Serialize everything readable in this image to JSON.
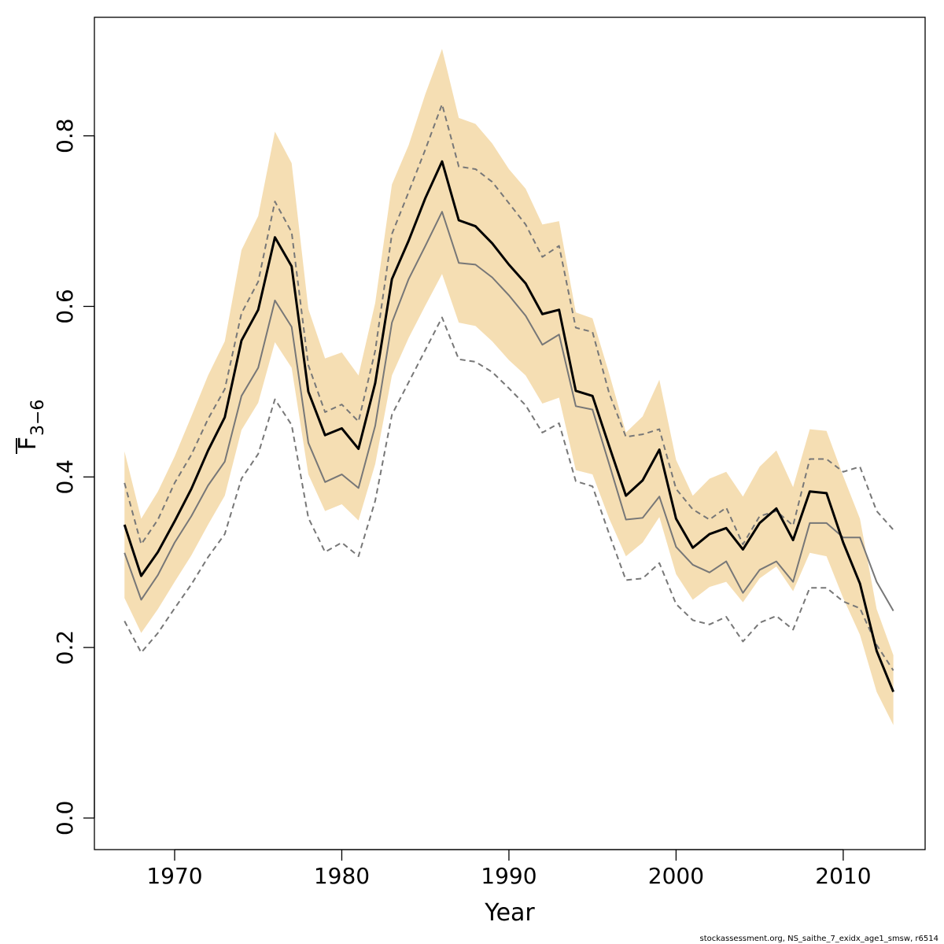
{
  "chart_data": {
    "type": "line",
    "xlabel": "Year",
    "ylabel": "F",
    "ylabel_subscript": "3−6",
    "footer": "stockassessment.org, NS_saithe_7_exidx_age1_smsw, r6514",
    "x": [
      1967,
      1968,
      1969,
      1970,
      1971,
      1972,
      1973,
      1974,
      1975,
      1976,
      1977,
      1978,
      1979,
      1980,
      1981,
      1982,
      1983,
      1984,
      1985,
      1986,
      1987,
      1988,
      1989,
      1990,
      1991,
      1992,
      1993,
      1994,
      1995,
      1996,
      1997,
      1998,
      1999,
      2000,
      2001,
      2002,
      2003,
      2004,
      2005,
      2006,
      2007,
      2008,
      2009,
      2010,
      2011,
      2012,
      2013
    ],
    "band": {
      "color": "#f5deb3",
      "high": [
        0.43,
        0.351,
        0.383,
        0.424,
        0.471,
        0.519,
        0.559,
        0.666,
        0.706,
        0.805,
        0.768,
        0.597,
        0.539,
        0.546,
        0.519,
        0.604,
        0.743,
        0.789,
        0.849,
        0.902,
        0.821,
        0.814,
        0.791,
        0.761,
        0.738,
        0.696,
        0.7,
        0.593,
        0.586,
        0.521,
        0.452,
        0.471,
        0.514,
        0.42,
        0.378,
        0.398,
        0.406,
        0.377,
        0.412,
        0.431,
        0.388,
        0.456,
        0.454,
        0.401,
        0.351,
        0.245,
        0.191
      ],
      "low": [
        0.258,
        0.217,
        0.245,
        0.277,
        0.308,
        0.344,
        0.378,
        0.455,
        0.487,
        0.558,
        0.528,
        0.403,
        0.36,
        0.368,
        0.349,
        0.415,
        0.519,
        0.563,
        0.601,
        0.638,
        0.581,
        0.577,
        0.559,
        0.537,
        0.519,
        0.486,
        0.493,
        0.408,
        0.403,
        0.351,
        0.307,
        0.323,
        0.353,
        0.286,
        0.256,
        0.271,
        0.277,
        0.253,
        0.281,
        0.295,
        0.266,
        0.311,
        0.307,
        0.258,
        0.215,
        0.148,
        0.109
      ]
    },
    "series": [
      {
        "color": "#000000",
        "width": 3,
        "dashed": false,
        "values": [
          0.344,
          0.284,
          0.312,
          0.348,
          0.386,
          0.431,
          0.47,
          0.56,
          0.596,
          0.681,
          0.647,
          0.5,
          0.449,
          0.457,
          0.433,
          0.51,
          0.632,
          0.677,
          0.727,
          0.77,
          0.701,
          0.694,
          0.674,
          0.649,
          0.627,
          0.591,
          0.596,
          0.501,
          0.495,
          0.436,
          0.378,
          0.396,
          0.432,
          0.351,
          0.317,
          0.333,
          0.34,
          0.315,
          0.346,
          0.363,
          0.326,
          0.383,
          0.381,
          0.323,
          0.275,
          0.196,
          0.148
        ]
      },
      {
        "color": "#777777",
        "width": 2,
        "dashed": false,
        "values": [
          0.311,
          0.256,
          0.285,
          0.323,
          0.354,
          0.39,
          0.418,
          0.495,
          0.528,
          0.607,
          0.576,
          0.44,
          0.394,
          0.403,
          0.387,
          0.46,
          0.581,
          0.632,
          0.671,
          0.711,
          0.651,
          0.649,
          0.634,
          0.613,
          0.589,
          0.555,
          0.567,
          0.483,
          0.479,
          0.415,
          0.35,
          0.352,
          0.377,
          0.318,
          0.297,
          0.288,
          0.301,
          0.264,
          0.291,
          0.301,
          0.277,
          0.346,
          0.346,
          0.329,
          0.329,
          0.277,
          0.243
        ]
      },
      {
        "color": "#777777",
        "width": 2,
        "dashed": true,
        "values": [
          0.393,
          0.321,
          0.35,
          0.393,
          0.426,
          0.468,
          0.503,
          0.592,
          0.629,
          0.723,
          0.687,
          0.531,
          0.476,
          0.485,
          0.465,
          0.548,
          0.685,
          0.734,
          0.784,
          0.837,
          0.764,
          0.761,
          0.746,
          0.721,
          0.696,
          0.658,
          0.671,
          0.575,
          0.57,
          0.498,
          0.447,
          0.45,
          0.456,
          0.386,
          0.362,
          0.35,
          0.364,
          0.321,
          0.354,
          0.36,
          0.343,
          0.421,
          0.421,
          0.406,
          0.412,
          0.36,
          0.338
        ]
      },
      {
        "color": "#777777",
        "width": 2,
        "dashed": true,
        "values": [
          0.231,
          0.194,
          0.217,
          0.246,
          0.274,
          0.306,
          0.333,
          0.398,
          0.427,
          0.491,
          0.461,
          0.352,
          0.312,
          0.323,
          0.307,
          0.372,
          0.473,
          0.511,
          0.549,
          0.587,
          0.538,
          0.535,
          0.523,
          0.504,
          0.484,
          0.452,
          0.463,
          0.395,
          0.389,
          0.333,
          0.279,
          0.281,
          0.299,
          0.251,
          0.232,
          0.227,
          0.236,
          0.207,
          0.229,
          0.237,
          0.221,
          0.27,
          0.27,
          0.254,
          0.246,
          0.203,
          0.173
        ]
      }
    ],
    "xlim": [
      1965.2,
      2014.9
    ],
    "ylim": [
      -0.037,
      0.939
    ],
    "xticks": [
      1970,
      1980,
      1990,
      2000,
      2010
    ],
    "yticks": [
      {
        "value": 0,
        "label": "0.0"
      },
      0.2,
      0.4,
      0.6,
      0.8
    ]
  }
}
